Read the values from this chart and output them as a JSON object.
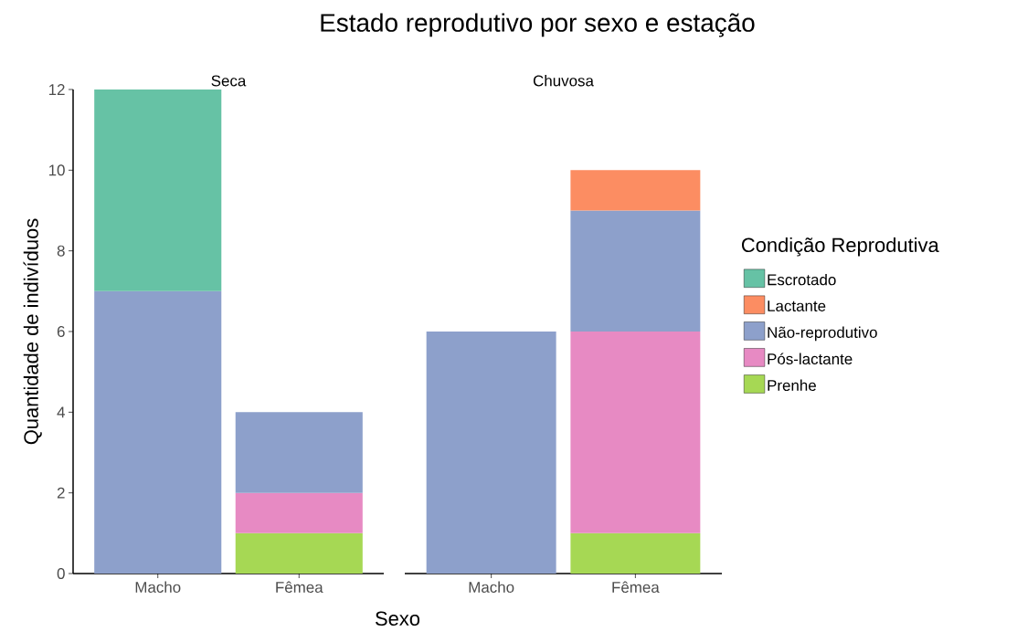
{
  "chart_data": [
    {
      "type": "bar",
      "title": "Estado reprodutivo por sexo e estação",
      "subtitle": "Seca",
      "xlabel": "Sexo",
      "ylabel": "Quantidade de indivíduos",
      "categories": [
        "Macho",
        "Fêmea"
      ],
      "stacked": true,
      "ylim": [
        0,
        12
      ],
      "yticks": [
        0,
        2,
        4,
        6,
        8,
        10,
        12
      ],
      "grid": false,
      "series": [
        {
          "color": "#a6d854",
          "values": [
            null,
            1
          ]
        },
        {
          "color": "#e78ac3",
          "values": [
            null,
            1
          ]
        },
        {
          "color": "#8da0cb",
          "values": [
            7,
            2
          ]
        },
        {
          "color": "#fc8d62",
          "values": [
            null,
            null
          ]
        },
        {
          "color": "#66c2a5",
          "values": [
            5,
            null
          ]
        }
      ]
    },
    {
      "type": "bar",
      "subtitle": "Chuvosa",
      "legend_title": "Condição Reprodutiva",
      "legend": "right",
      "categories": [
        "Macho",
        "Fêmea"
      ],
      "stacked": true,
      "ylim": [
        0,
        12
      ],
      "yticks": [
        0,
        2,
        4,
        6,
        8,
        10,
        12
      ],
      "tick_labels": "x",
      "grid": false,
      "series": [
        {
          "name": "Prenhe",
          "color": "#a6d854",
          "values": [
            null,
            1
          ]
        },
        {
          "name": "Pós-lactante",
          "color": "#e78ac3",
          "values": [
            null,
            5
          ]
        },
        {
          "name": "Não-reprodutivo",
          "color": "#8da0cb",
          "values": [
            6,
            3
          ]
        },
        {
          "name": "Lactante",
          "color": "#fc8d62",
          "values": [
            null,
            1
          ]
        },
        {
          "name": "Escrotado",
          "color": "#66c2a5",
          "values": [
            null,
            null
          ]
        }
      ]
    }
  ]
}
